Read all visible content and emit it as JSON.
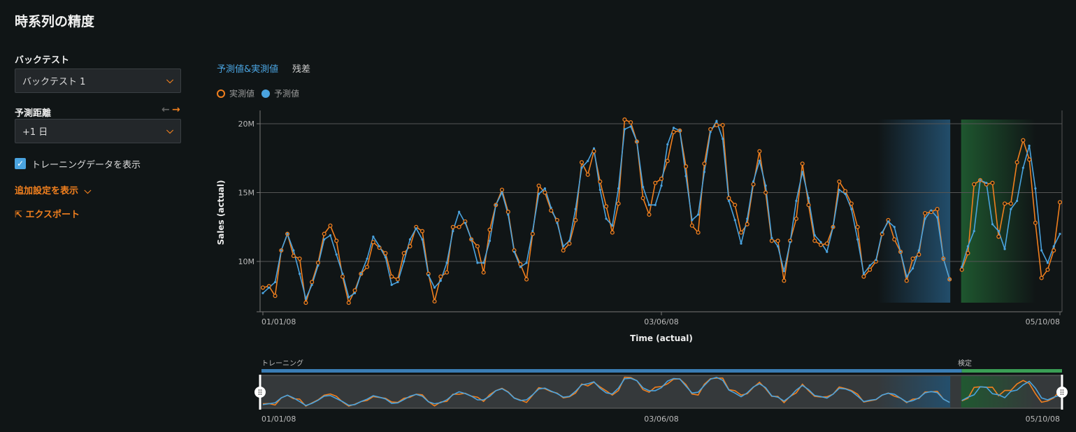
{
  "page": {
    "title": "時系列の精度"
  },
  "sidebar": {
    "backtest_label": "バックテスト",
    "backtest_value": "バックテスト 1",
    "horizon_label": "予測距離",
    "horizon_value": "+1 日",
    "show_training_label": "トレーニングデータを表示",
    "show_training_checked": true,
    "more_settings_label": "追加設定を表示",
    "export_label": "エクスポート"
  },
  "tabs": [
    {
      "label": "予測値&実測値",
      "active": true
    },
    {
      "label": "残差",
      "active": false
    }
  ],
  "legend": [
    {
      "label": "実測値",
      "color": "#f07f1e"
    },
    {
      "label": "予測値",
      "color": "#4aa3df"
    }
  ],
  "navigator": {
    "training_label": "トレーニング",
    "validation_label": "検定",
    "training_color": "#3a7db5",
    "validation_color": "#3a9e55"
  },
  "chart_data": {
    "type": "line",
    "xlabel": "Time (actual)",
    "ylabel": "Sales (actual)",
    "x_start": "01/01/08",
    "x_ticks": [
      {
        "label": "01/01/08",
        "index": 0
      },
      {
        "label": "03/06/08",
        "index": 65
      },
      {
        "label": "05/10/08",
        "index": 130
      }
    ],
    "y_ticks": [
      {
        "label": "10M",
        "value": 10
      },
      {
        "label": "15M",
        "value": 15
      },
      {
        "label": "20M",
        "value": 20
      }
    ],
    "y_unit": "M",
    "ylim": [
      7,
      20.8
    ],
    "grid": true,
    "legend_position": "top-left",
    "training_end_index": 112,
    "validation_start_index": 114,
    "series": [
      {
        "name": "実測値",
        "color": "#f07f1e",
        "values": [
          8.1,
          8.2,
          7.5,
          10.8,
          12.0,
          10.4,
          10.2,
          7.0,
          8.5,
          9.9,
          12.0,
          12.6,
          11.5,
          8.9,
          7.0,
          7.9,
          9.1,
          9.6,
          11.4,
          11.0,
          10.6,
          8.9,
          8.7,
          10.6,
          11.1,
          12.5,
          12.2,
          9.1,
          7.1,
          8.9,
          9.2,
          12.5,
          12.5,
          12.9,
          11.6,
          11.1,
          9.2,
          12.3,
          14.1,
          15.2,
          13.6,
          10.8,
          9.8,
          8.7,
          12.0,
          15.5,
          15.0,
          13.7,
          13.0,
          10.8,
          11.3,
          13.0,
          17.2,
          16.3,
          18.0,
          15.8,
          14.0,
          12.1,
          14.2,
          20.3,
          20.1,
          18.7,
          14.6,
          13.4,
          15.7,
          16.0,
          17.3,
          19.4,
          19.5,
          16.9,
          12.6,
          12.1,
          17.1,
          19.6,
          19.9,
          19.9,
          14.6,
          14.1,
          12.1,
          12.7,
          15.6,
          18.0,
          15.0,
          11.5,
          11.5,
          8.6,
          11.5,
          13.1,
          17.1,
          14.1,
          11.5,
          11.2,
          11.3,
          12.5,
          15.8,
          15.1,
          14.2,
          12.5,
          8.9,
          9.4,
          10.0,
          12.0,
          13.0,
          11.6,
          10.7,
          8.6,
          10.2,
          10.5,
          13.5,
          13.6,
          13.8,
          10.2,
          8.7,
          null,
          9.4,
          10.6,
          15.6,
          15.9,
          15.6,
          15.7,
          11.8,
          14.2,
          14.2,
          17.2,
          18.8,
          17.4,
          12.8,
          8.8,
          9.4,
          10.8,
          14.3
        ]
      },
      {
        "name": "予測値",
        "color": "#4aa3df",
        "values": [
          7.7,
          8.1,
          8.5,
          10.8,
          12.0,
          10.8,
          9.1,
          7.3,
          8.3,
          9.7,
          11.6,
          11.9,
          10.5,
          9.1,
          7.4,
          7.7,
          9.1,
          10.2,
          11.8,
          11.1,
          10.3,
          8.3,
          8.5,
          10.0,
          11.6,
          12.4,
          11.6,
          9.0,
          8.1,
          8.6,
          9.9,
          12.2,
          13.6,
          12.8,
          11.6,
          9.9,
          9.9,
          11.5,
          14.1,
          15.0,
          13.4,
          10.7,
          9.6,
          9.9,
          12.2,
          14.9,
          15.3,
          13.9,
          12.8,
          11.1,
          11.5,
          13.8,
          16.8,
          17.3,
          18.2,
          15.2,
          13.1,
          12.6,
          15.3,
          19.6,
          19.8,
          18.7,
          15.4,
          14.1,
          14.1,
          15.5,
          18.5,
          19.7,
          19.5,
          16.2,
          13.0,
          13.4,
          16.5,
          19.4,
          20.2,
          18.9,
          14.4,
          13.0,
          11.3,
          13.1,
          15.8,
          17.3,
          15.5,
          11.7,
          11.1,
          9.3,
          11.4,
          14.4,
          16.5,
          14.6,
          11.9,
          11.4,
          10.7,
          12.5,
          15.2,
          14.9,
          13.8,
          11.6,
          9.1,
          9.7,
          10.1,
          12.1,
          12.9,
          12.5,
          10.7,
          8.9,
          9.5,
          10.8,
          13.1,
          13.7,
          13.2,
          10.2,
          8.7,
          null,
          9.6,
          11.1,
          12.2,
          15.9,
          15.7,
          12.7,
          12.2,
          10.9,
          13.8,
          14.4,
          16.8,
          18.4,
          15.3,
          10.8,
          9.9,
          11.1,
          12.0
        ]
      }
    ]
  }
}
